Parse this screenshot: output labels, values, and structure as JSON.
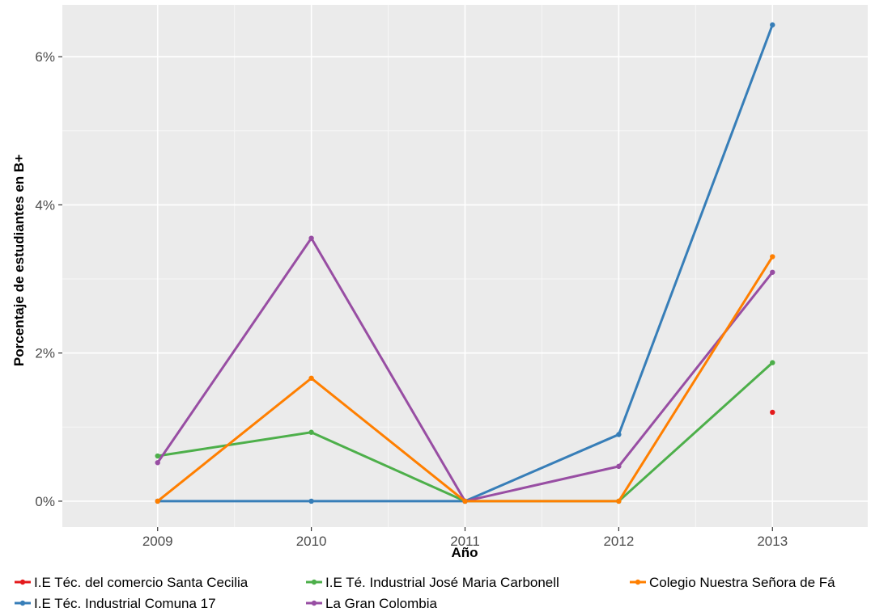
{
  "chart_data": {
    "type": "line",
    "xlabel": "Año",
    "ylabel": "Porcentaje de estudiantes en B+",
    "x": [
      2009,
      2010,
      2011,
      2012,
      2013
    ],
    "xlim": [
      2008.38,
      2013.62
    ],
    "ylim": [
      -0.35,
      6.7
    ],
    "y_ticks": [
      0,
      2,
      4,
      6
    ],
    "y_tick_labels": [
      "0%",
      "2%",
      "4%",
      "6%"
    ],
    "grid": true,
    "legend_position": "bottom",
    "series": [
      {
        "name": "I.E Téc. del comercio Santa Cecilia",
        "color": "#e41a1c",
        "values": [
          null,
          null,
          null,
          null,
          1.2
        ]
      },
      {
        "name": "I.E Téc. Industrial Comuna 17",
        "color": "#377eb8",
        "values": [
          0.0,
          0.0,
          0.0,
          0.9,
          6.43
        ]
      },
      {
        "name": "I.E Té. Industrial José Maria Carbonell",
        "color": "#4daf4a",
        "values": [
          0.61,
          0.93,
          0.0,
          0.0,
          1.87
        ]
      },
      {
        "name": "La Gran Colombia",
        "color": "#984ea3",
        "values": [
          0.52,
          3.55,
          0.0,
          0.47,
          3.09
        ]
      },
      {
        "name": "Colegio Nuestra Señora de Fá",
        "color": "#ff7f00",
        "values": [
          0.0,
          1.66,
          0.0,
          0.0,
          3.3
        ]
      }
    ]
  }
}
